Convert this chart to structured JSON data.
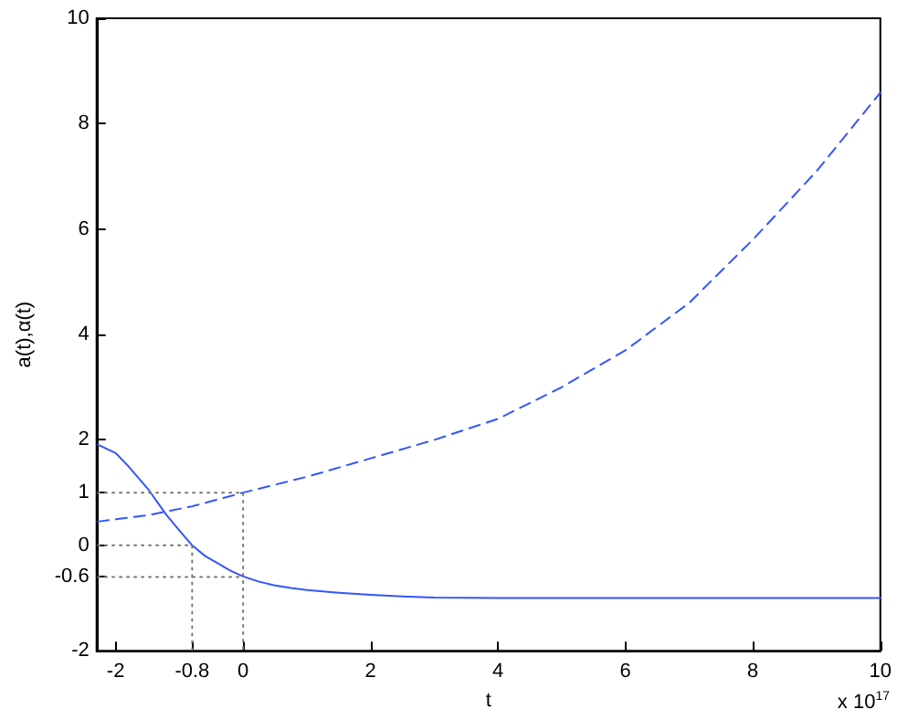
{
  "chart_data": {
    "type": "line",
    "xlabel": "t",
    "ylabel": "a(t),α(t)",
    "annotations": [
      "x 10$^{17}$"
    ],
    "xlim": [
      -2.3,
      10
    ],
    "xticks": [
      -2,
      -0.8,
      0,
      2,
      4,
      6,
      8,
      10
    ],
    "ylim": [
      -2,
      10
    ],
    "yticks": [
      -2,
      -0.6,
      0,
      1,
      2,
      4,
      6,
      8,
      10
    ],
    "marker": "none",
    "series": [
      {
        "color": "#3355ff",
        "line_style": "solid",
        "x": [
          -2.28,
          -2,
          -1.8,
          -1.5,
          -1.2,
          -1,
          -0.8,
          -0.6,
          -0.4,
          -0.2,
          0,
          0.25,
          0.5,
          0.75,
          1,
          1.5,
          2,
          2.5,
          3,
          4,
          5,
          6,
          7,
          8,
          9,
          10
        ],
        "values": [
          1.91,
          1.75,
          1.5,
          1.08,
          0.57,
          0.28,
          0,
          -0.2,
          -0.34,
          -0.48,
          -0.59,
          -0.69,
          -0.76,
          -0.81,
          -0.85,
          -0.9,
          -0.94,
          -0.97,
          -0.99,
          -1,
          -1,
          -1,
          -1,
          -1,
          -1,
          -1
        ]
      },
      {
        "color": "#3355ff",
        "line_style": "dashed",
        "x": [
          -2.28,
          -1.5,
          -0.8,
          0,
          1,
          2,
          3,
          4,
          5,
          6,
          7,
          8,
          9,
          10
        ],
        "values": [
          0.45,
          0.57,
          0.74,
          1,
          1.3,
          1.65,
          2,
          2.4,
          3,
          3.7,
          4.6,
          5.8,
          7.1,
          8.59
        ]
      },
      {
        "color": "#777777",
        "line_style": "dotted",
        "x": [
          -2.28,
          0,
          0
        ],
        "values": [
          1,
          1,
          -2
        ]
      },
      {
        "color": "#777777",
        "line_style": "dotted",
        "x": [
          -2.28,
          -0.8,
          -0.8
        ],
        "values": [
          0,
          0,
          -2
        ]
      },
      {
        "color": "#777777",
        "line_style": "dotted",
        "x": [
          -2.28,
          0
        ],
        "values": [
          -0.6,
          -0.6
        ]
      }
    ]
  }
}
